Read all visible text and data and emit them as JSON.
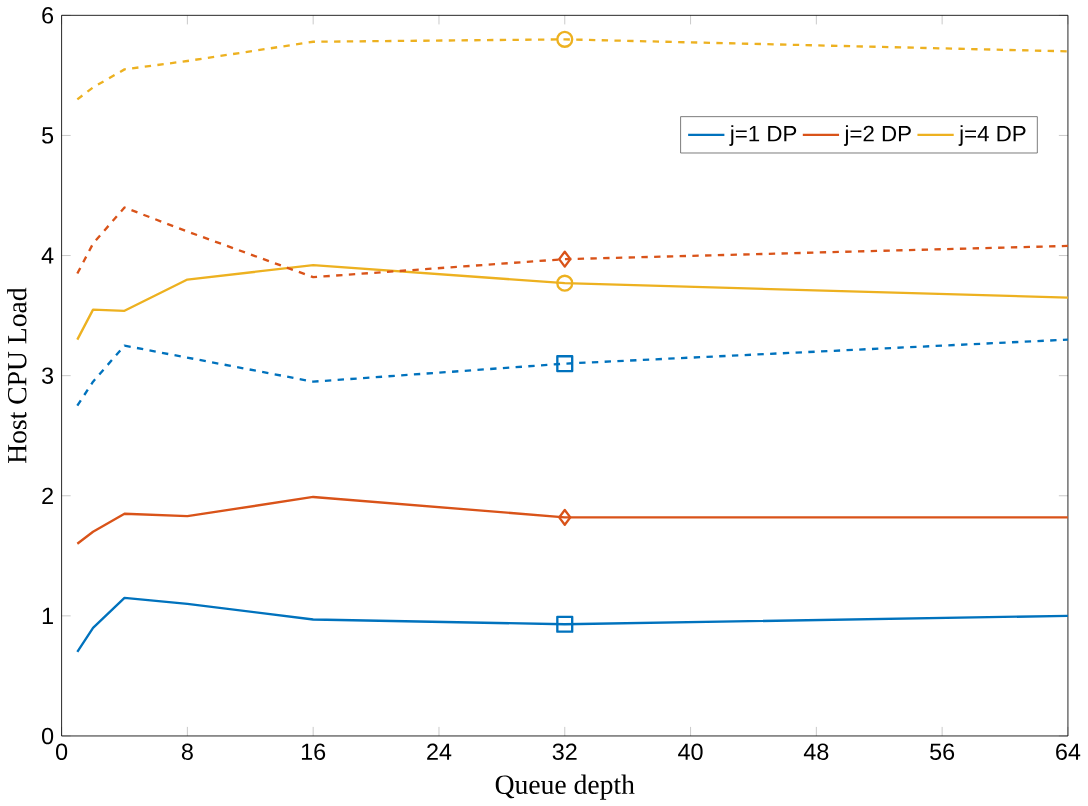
{
  "chart_data": {
    "type": "line",
    "xlabel": "Queue depth",
    "ylabel": "Host CPU Load",
    "x": [
      1,
      2,
      4,
      8,
      16,
      32,
      64
    ],
    "xlim": [
      0,
      64
    ],
    "ylim": [
      0,
      6
    ],
    "xticks": [
      0,
      8,
      16,
      24,
      32,
      40,
      48,
      56,
      64
    ],
    "yticks": [
      0,
      1,
      2,
      3,
      4,
      5,
      6
    ],
    "legend": "top right",
    "grid": false,
    "series": [
      {
        "name": "j=1 DP",
        "color": "#0072bd",
        "line_style": "solid",
        "values": [
          0.7,
          0.9,
          1.15,
          1.1,
          0.97,
          0.93,
          1.0
        ]
      },
      {
        "name": "j=2 DP",
        "color": "#d95319",
        "line_style": "solid",
        "values": [
          1.6,
          1.7,
          1.85,
          1.83,
          1.99,
          1.82,
          1.82
        ]
      },
      {
        "name": "j=4 DP",
        "color": "#edb120",
        "line_style": "solid",
        "values": [
          3.3,
          3.55,
          3.54,
          3.8,
          3.92,
          3.77,
          3.65
        ]
      },
      {
        "color": "#0072bd",
        "line_style": "dashed",
        "values": [
          2.75,
          2.95,
          3.25,
          3.15,
          2.95,
          3.1,
          3.3
        ]
      },
      {
        "color": "#d95319",
        "line_style": "dashed",
        "values": [
          3.85,
          4.1,
          4.4,
          4.2,
          3.82,
          3.97,
          4.08
        ]
      },
      {
        "color": "#edb120",
        "line_style": "dashed",
        "values": [
          5.3,
          5.4,
          5.55,
          5.62,
          5.78,
          5.8,
          5.7
        ]
      },
      {
        "type": "scatter",
        "color": "#0072bd",
        "marker": "square",
        "values": [
          null,
          null,
          null,
          null,
          null,
          0.93,
          null
        ]
      },
      {
        "type": "scatter",
        "color": "#d95319",
        "marker": "diamond",
        "values": [
          null,
          null,
          null,
          null,
          null,
          1.82,
          null
        ]
      },
      {
        "type": "scatter",
        "color": "#edb120",
        "marker": "circle",
        "values": [
          null,
          null,
          null,
          null,
          null,
          3.77,
          null
        ]
      },
      {
        "type": "scatter",
        "color": "#0072bd",
        "marker": "square",
        "values": [
          null,
          null,
          null,
          null,
          null,
          3.1,
          null
        ]
      },
      {
        "type": "scatter",
        "color": "#d95319",
        "marker": "diamond",
        "values": [
          null,
          null,
          null,
          null,
          null,
          3.97,
          null
        ]
      },
      {
        "type": "scatter",
        "color": "#edb120",
        "marker": "circle",
        "values": [
          null,
          null,
          null,
          null,
          null,
          5.8,
          null
        ]
      }
    ]
  }
}
